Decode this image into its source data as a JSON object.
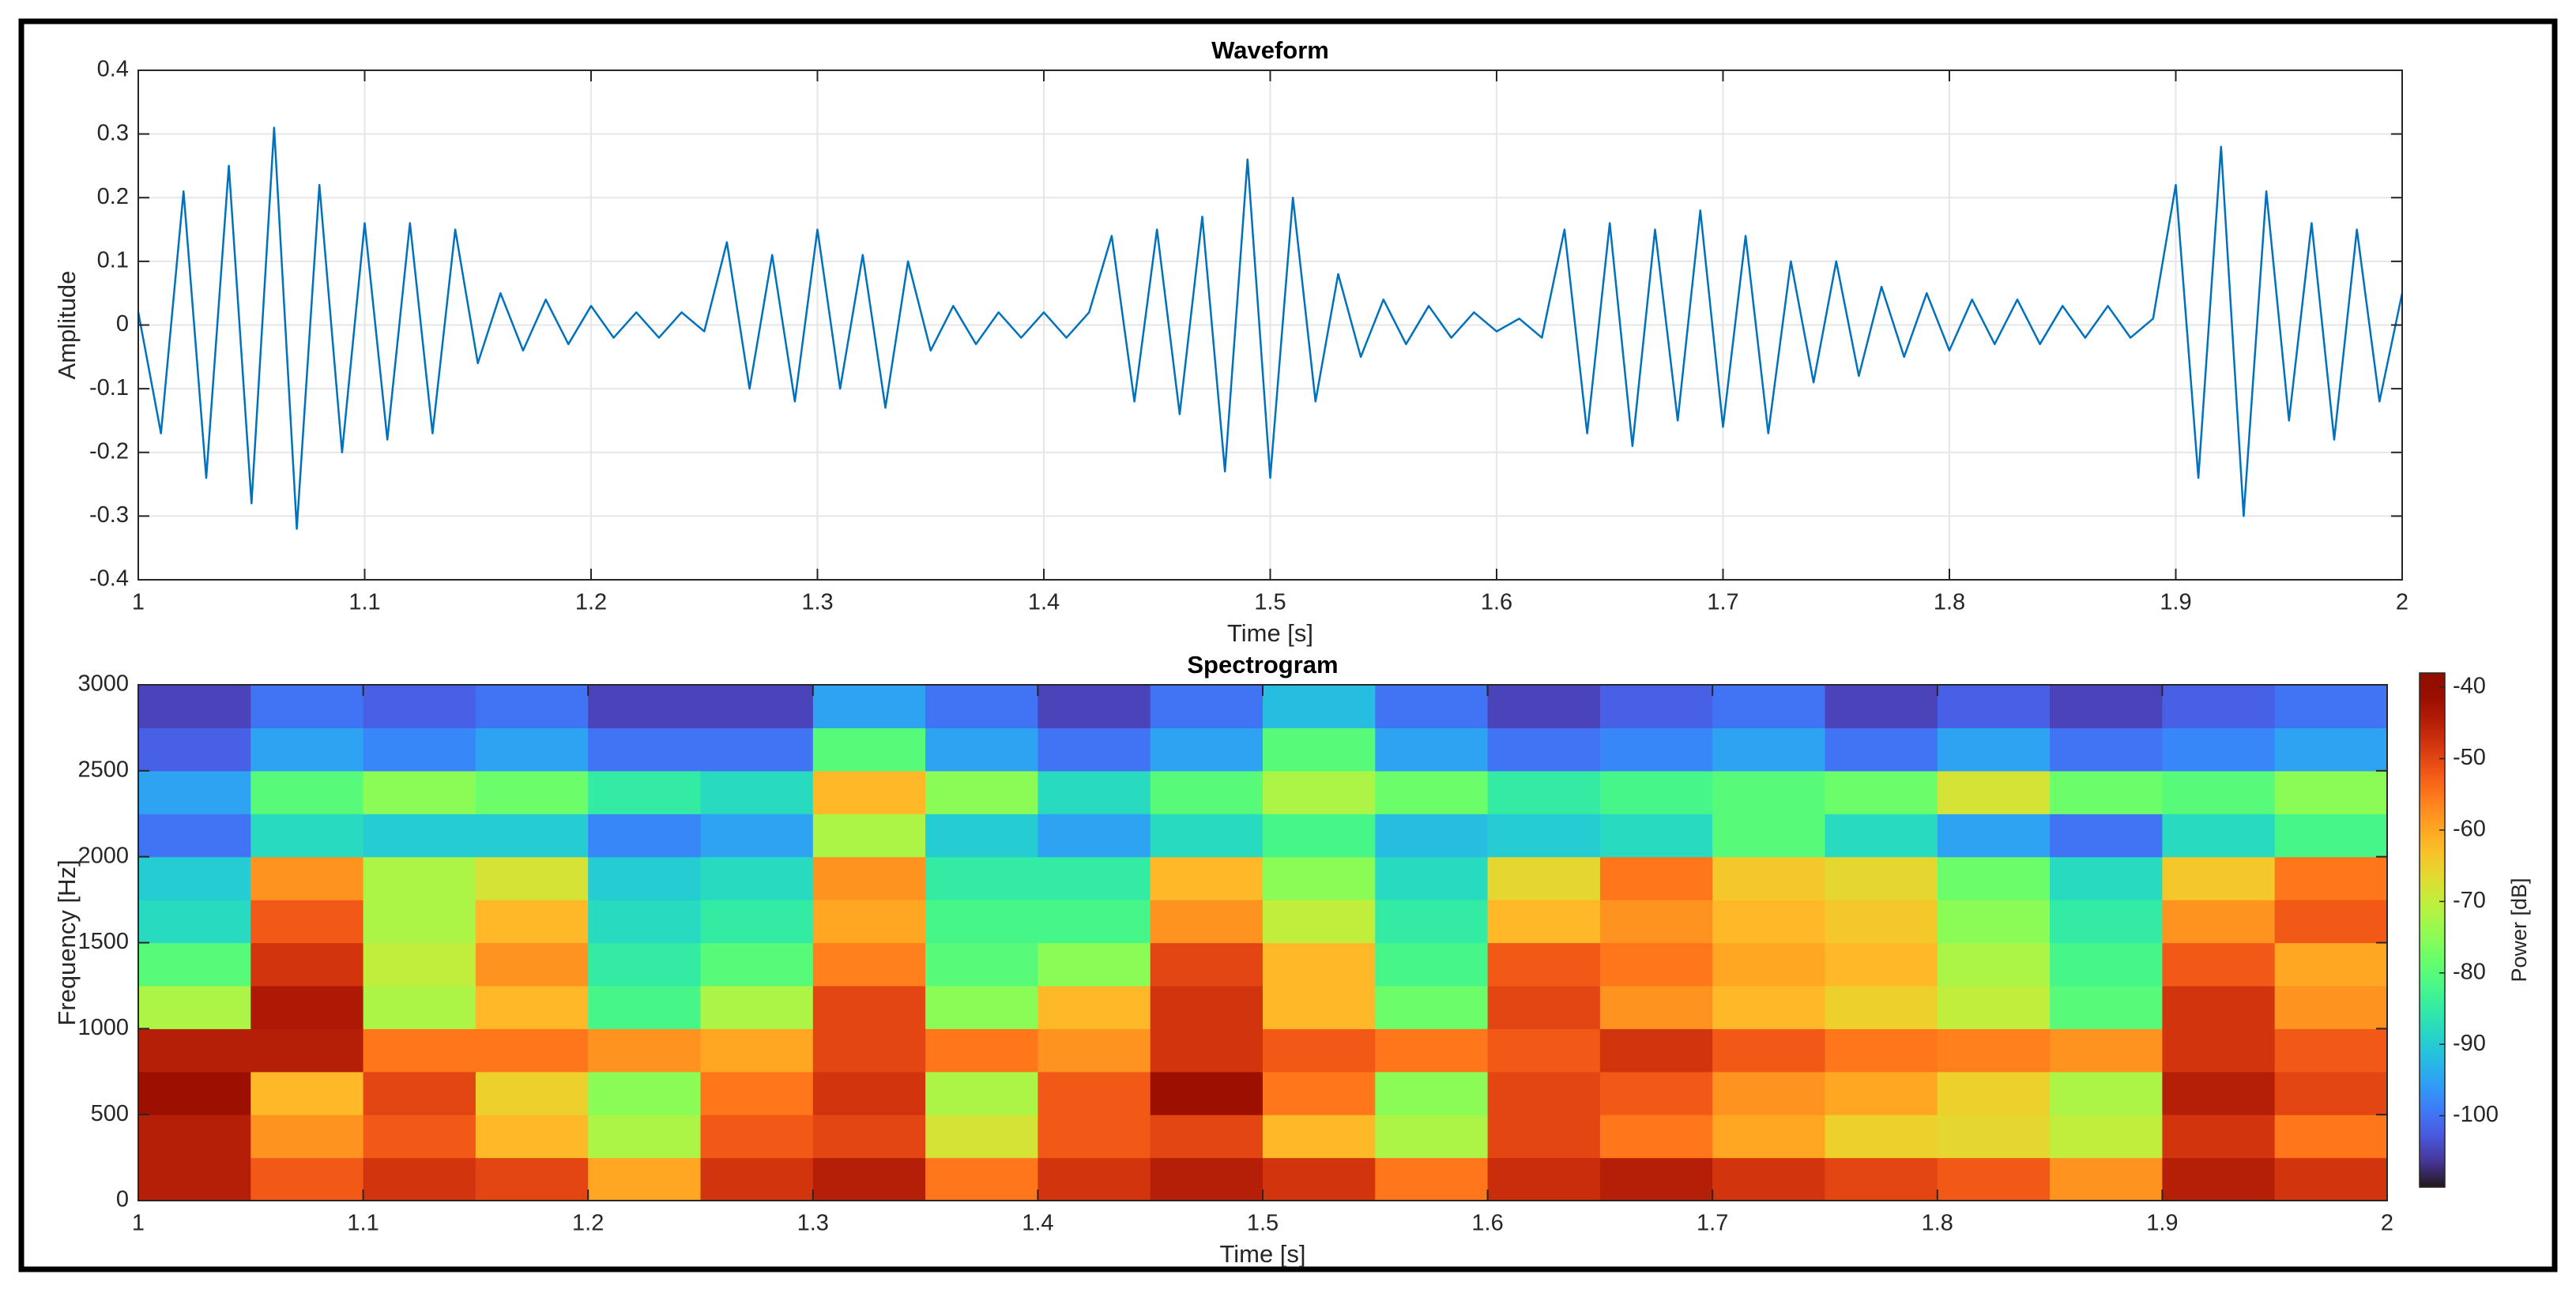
{
  "chart_data": [
    {
      "type": "line",
      "title": "Waveform",
      "xlabel": "Time [s]",
      "ylabel": "Amplitude",
      "x": [
        1,
        1.01,
        1.02,
        1.03,
        1.04,
        1.05,
        1.06,
        1.07,
        1.08,
        1.09,
        1.1,
        1.11,
        1.12,
        1.13,
        1.14,
        1.15,
        1.16,
        1.17,
        1.18,
        1.19,
        1.2,
        1.21,
        1.22,
        1.23,
        1.24,
        1.25,
        1.26,
        1.27,
        1.28,
        1.29,
        1.3,
        1.31,
        1.32,
        1.33,
        1.34,
        1.35,
        1.36,
        1.37,
        1.38,
        1.39,
        1.4,
        1.41,
        1.42,
        1.43,
        1.44,
        1.45,
        1.46,
        1.47,
        1.48,
        1.49,
        1.5,
        1.51,
        1.52,
        1.53,
        1.54,
        1.55,
        1.56,
        1.57,
        1.58,
        1.59,
        1.6,
        1.61,
        1.62,
        1.63,
        1.64,
        1.65,
        1.66,
        1.67,
        1.68,
        1.69,
        1.7,
        1.71,
        1.72,
        1.73,
        1.74,
        1.75,
        1.76,
        1.77,
        1.78,
        1.79,
        1.8,
        1.81,
        1.82,
        1.83,
        1.84,
        1.85,
        1.86,
        1.87,
        1.88,
        1.89,
        1.9,
        1.91,
        1.92,
        1.93,
        1.94,
        1.95,
        1.96,
        1.97,
        1.98,
        1.99,
        2
      ],
      "series": [
        {
          "color": "#0072bd",
          "values": [
            0.02,
            -0.17,
            0.21,
            -0.24,
            0.25,
            -0.28,
            0.31,
            -0.32,
            0.22,
            -0.2,
            0.16,
            -0.18,
            0.16,
            -0.17,
            0.15,
            -0.06,
            0.05,
            -0.04,
            0.04,
            -0.03,
            0.03,
            -0.02,
            0.02,
            -0.02,
            0.02,
            -0.01,
            0.13,
            -0.1,
            0.11,
            -0.12,
            0.15,
            -0.1,
            0.11,
            -0.13,
            0.1,
            -0.04,
            0.03,
            -0.03,
            0.02,
            -0.02,
            0.02,
            -0.02,
            0.02,
            0.14,
            -0.12,
            0.15,
            -0.14,
            0.17,
            -0.23,
            0.26,
            -0.24,
            0.2,
            -0.12,
            0.08,
            -0.05,
            0.04,
            -0.03,
            0.03,
            -0.02,
            0.02,
            -0.01,
            0.01,
            -0.02,
            0.15,
            -0.17,
            0.16,
            -0.19,
            0.15,
            -0.15,
            0.18,
            -0.16,
            0.14,
            -0.17,
            0.1,
            -0.09,
            0.1,
            -0.08,
            0.06,
            -0.05,
            0.05,
            -0.04,
            0.04,
            -0.03,
            0.04,
            -0.03,
            0.03,
            -0.02,
            0.03,
            -0.02,
            0.01,
            0.22,
            -0.24,
            0.28,
            -0.3,
            0.21,
            -0.15,
            0.16,
            -0.18,
            0.15,
            -0.12,
            0.05
          ]
        }
      ],
      "xlim": [
        1,
        2
      ],
      "ylim": [
        -0.4,
        0.4
      ],
      "xticks": [
        1,
        1.1,
        1.2,
        1.3,
        1.4,
        1.5,
        1.6,
        1.7,
        1.8,
        1.9,
        2
      ],
      "yticks": [
        -0.4,
        -0.3,
        -0.2,
        -0.1,
        0,
        0.1,
        0.2,
        0.3,
        0.4
      ],
      "grid": true
    },
    {
      "type": "heatmap",
      "title": "Spectrogram",
      "xlabel": "Time [s]",
      "ylabel": "Frequency [Hz]",
      "colorbar_label": "Power [dB]",
      "colormap": "turbo",
      "x": [
        1.025,
        1.075,
        1.125,
        1.175,
        1.225,
        1.275,
        1.325,
        1.375,
        1.425,
        1.475,
        1.525,
        1.575,
        1.625,
        1.675,
        1.725,
        1.775,
        1.825,
        1.875,
        1.925,
        1.975
      ],
      "y": [
        125,
        375,
        625,
        875,
        1125,
        1375,
        1625,
        1875,
        2125,
        2375,
        2625,
        2875
      ],
      "values": [
        [
          -45,
          -52,
          -48,
          -50,
          -60,
          -48,
          -45,
          -55,
          -48,
          -45,
          -48,
          -55,
          -47,
          -45,
          -48,
          -50,
          -52,
          -58,
          -45,
          -48
        ],
        [
          -45,
          -58,
          -52,
          -62,
          -72,
          -52,
          -50,
          -68,
          -52,
          -50,
          -62,
          -72,
          -50,
          -55,
          -60,
          -65,
          -66,
          -70,
          -48,
          -55
        ],
        [
          -42,
          -62,
          -50,
          -65,
          -75,
          -55,
          -48,
          -72,
          -52,
          -42,
          -55,
          -75,
          -50,
          -52,
          -58,
          -60,
          -65,
          -72,
          -45,
          -50
        ],
        [
          -45,
          -45,
          -55,
          -55,
          -58,
          -60,
          -50,
          -55,
          -58,
          -48,
          -52,
          -55,
          -52,
          -48,
          -52,
          -55,
          -56,
          -58,
          -48,
          -52
        ],
        [
          -72,
          -44,
          -72,
          -62,
          -82,
          -72,
          -50,
          -75,
          -62,
          -48,
          -62,
          -78,
          -50,
          -58,
          -62,
          -65,
          -70,
          -80,
          -48,
          -58
        ],
        [
          -80,
          -48,
          -70,
          -58,
          -85,
          -80,
          -56,
          -80,
          -75,
          -50,
          -62,
          -82,
          -52,
          -55,
          -60,
          -62,
          -72,
          -82,
          -52,
          -60
        ],
        [
          -88,
          -52,
          -72,
          -62,
          -88,
          -85,
          -60,
          -82,
          -82,
          -58,
          -70,
          -85,
          -62,
          -58,
          -62,
          -64,
          -75,
          -85,
          -58,
          -52
        ],
        [
          -90,
          -58,
          -72,
          -68,
          -90,
          -88,
          -58,
          -85,
          -85,
          -62,
          -75,
          -88,
          -66,
          -55,
          -64,
          -66,
          -78,
          -88,
          -64,
          -55
        ],
        [
          -100,
          -88,
          -90,
          -90,
          -98,
          -95,
          -72,
          -90,
          -95,
          -88,
          -82,
          -92,
          -90,
          -88,
          -80,
          -88,
          -95,
          -100,
          -88,
          -82
        ],
        [
          -95,
          -80,
          -75,
          -78,
          -85,
          -88,
          -62,
          -75,
          -88,
          -80,
          -72,
          -78,
          -85,
          -82,
          -80,
          -78,
          -68,
          -78,
          -80,
          -75
        ],
        [
          -102,
          -95,
          -98,
          -95,
          -100,
          -100,
          -80,
          -95,
          -100,
          -95,
          -80,
          -95,
          -100,
          -98,
          -95,
          -100,
          -95,
          -100,
          -98,
          -95
        ],
        [
          -105,
          -100,
          -102,
          -100,
          -105,
          -105,
          -95,
          -100,
          -105,
          -100,
          -92,
          -100,
          -105,
          -102,
          -100,
          -105,
          -102,
          -105,
          -102,
          -100
        ]
      ],
      "xlim": [
        1,
        2
      ],
      "ylim": [
        0,
        3000
      ],
      "xticks": [
        1,
        1.1,
        1.2,
        1.3,
        1.4,
        1.5,
        1.6,
        1.7,
        1.8,
        1.9,
        2
      ],
      "yticks": [
        0,
        500,
        1000,
        1500,
        2000,
        2500,
        3000
      ],
      "clim": [
        -110,
        -38
      ],
      "cticks": [
        -100,
        -90,
        -80,
        -70,
        -60,
        -50,
        -40
      ],
      "grid": false
    }
  ]
}
